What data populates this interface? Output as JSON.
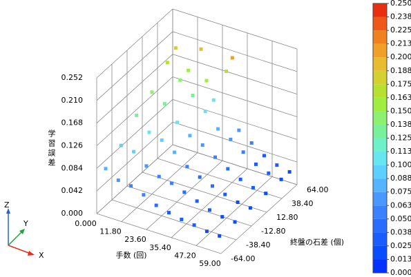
{
  "chart_data": {
    "type": "scatter3d",
    "xlabel": "手数 (回)",
    "ylabel": "終盤の石差 (個)",
    "zlabel": "学習誤差",
    "xlim": [
      0,
      59
    ],
    "ylim": [
      -64,
      64
    ],
    "zlim": [
      0,
      0.252
    ],
    "xticks": [
      {
        "value": 0,
        "label": "0.000"
      },
      {
        "value": 11.8,
        "label": "11.80"
      },
      {
        "value": 23.6,
        "label": "23.60"
      },
      {
        "value": 35.4,
        "label": "35.40"
      },
      {
        "value": 47.2,
        "label": "47.20"
      },
      {
        "value": 59,
        "label": "59.00"
      }
    ],
    "yticks": [
      {
        "value": -64,
        "label": "-64.00"
      },
      {
        "value": -38.4,
        "label": "-38.40"
      },
      {
        "value": -12.8,
        "label": "-12.80"
      },
      {
        "value": 12.8,
        "label": "12.80"
      },
      {
        "value": 38.4,
        "label": "38.40"
      },
      {
        "value": 64,
        "label": "64.00"
      }
    ],
    "zticks": [
      {
        "value": 0,
        "label": "0.000"
      },
      0.042,
      0.084,
      0.126,
      0.168,
      {
        "value": 0.21,
        "label": "0.210"
      },
      0.252
    ],
    "grid": true,
    "x": [
      2,
      2,
      2,
      2,
      2,
      2,
      8,
      8,
      8,
      8,
      8,
      8,
      14,
      14,
      14,
      14,
      14,
      14,
      20,
      20,
      20,
      20,
      20,
      20,
      26,
      26,
      26,
      26,
      26,
      26,
      32,
      32,
      32,
      32,
      32,
      32,
      38,
      38,
      38,
      38,
      38,
      38,
      44,
      44,
      44,
      44,
      44,
      44,
      50,
      50,
      50,
      50,
      50,
      50,
      56,
      56,
      56,
      56,
      56,
      56,
      30,
      20
    ],
    "y": [
      -56,
      -30,
      -4,
      22,
      48,
      62,
      -56,
      -30,
      -4,
      22,
      48,
      62,
      -56,
      -30,
      -4,
      22,
      48,
      62,
      -56,
      -30,
      -4,
      22,
      48,
      62,
      -56,
      -30,
      -4,
      22,
      48,
      62,
      -56,
      -30,
      -4,
      22,
      48,
      62,
      -56,
      -30,
      -4,
      22,
      48,
      62,
      -56,
      -30,
      -4,
      22,
      48,
      62,
      -56,
      -30,
      -4,
      22,
      48,
      62,
      -56,
      -30,
      -4,
      22,
      48,
      62,
      58,
      50
    ],
    "z": [
      0.078,
      0.095,
      0.125,
      0.142,
      0.171,
      0.184,
      0.064,
      0.091,
      0.101,
      0.128,
      0.146,
      0.15,
      0.061,
      0.072,
      0.094,
      0.101,
      0.125,
      0.197,
      0.052,
      0.06,
      0.079,
      0.084,
      0.103,
      0.11,
      0.04,
      0.055,
      0.06,
      0.074,
      0.078,
      0.171,
      0.034,
      0.046,
      0.048,
      0.059,
      0.066,
      0.069,
      0.029,
      0.037,
      0.039,
      0.045,
      0.05,
      0.053,
      0.026,
      0.028,
      0.031,
      0.033,
      0.035,
      0.037,
      0.022,
      0.023,
      0.024,
      0.025,
      0.026,
      0.027,
      0.021,
      0.021,
      0.021,
      0.022,
      0.022,
      0.022,
      0.205,
      0.158
    ],
    "colorbar": {
      "lim": [
        0,
        0.25
      ],
      "colors": [
        "#0033ff",
        "#0a4cff",
        "#1a5cff",
        "#2a6cff",
        "#3a80ff",
        "#4a98ff",
        "#55b4ff",
        "#5ed0ff",
        "#66e6f0",
        "#6ef0c8",
        "#7af09a",
        "#8cf070",
        "#a0ec40",
        "#b8e030",
        "#d4d030",
        "#e8bc30",
        "#f0a028",
        "#f08020",
        "#ee5818",
        "#e83010"
      ],
      "ticks": [
        {
          "value": 0,
          "label": "0.000"
        },
        {
          "value": 0.0125,
          "label": "0.013"
        },
        {
          "value": 0.025,
          "label": "0.025"
        },
        {
          "value": 0.0375,
          "label": "0.038"
        },
        {
          "value": 0.05,
          "label": "0.050"
        },
        {
          "value": 0.0625,
          "label": "0.063"
        },
        {
          "value": 0.075,
          "label": "0.075"
        },
        {
          "value": 0.0875,
          "label": "0.088"
        },
        {
          "value": 0.1,
          "label": "0.100"
        },
        {
          "value": 0.1125,
          "label": "0.113"
        },
        {
          "value": 0.125,
          "label": "0.125"
        },
        {
          "value": 0.1375,
          "label": "0.138"
        },
        {
          "value": 0.15,
          "label": "0.150"
        },
        {
          "value": 0.1625,
          "label": "0.163"
        },
        {
          "value": 0.175,
          "label": "0.175"
        },
        {
          "value": 0.1875,
          "label": "0.188"
        },
        {
          "value": 0.2,
          "label": "0.200"
        },
        {
          "value": 0.2125,
          "label": "0.213"
        },
        {
          "value": 0.225,
          "label": "0.225"
        },
        {
          "value": 0.2375,
          "label": "0.238"
        },
        {
          "value": 0.25,
          "label": "0.250"
        }
      ]
    },
    "triad": {
      "x": "X",
      "y": "Y",
      "z": "Z"
    }
  }
}
